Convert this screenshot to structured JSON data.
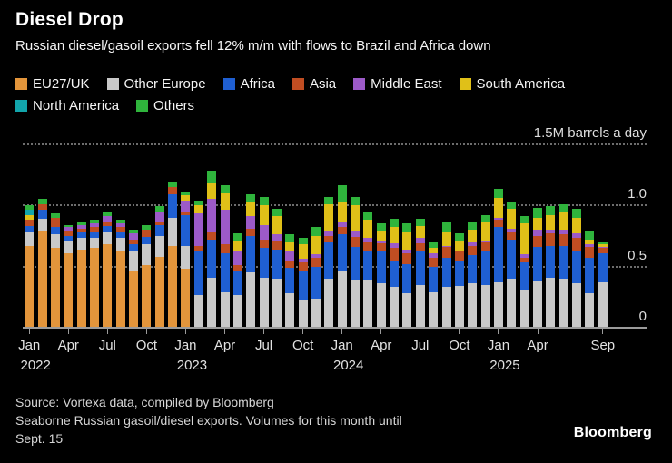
{
  "header": {
    "title": "Diesel Drop",
    "subtitle": "Russian diesel/gasoil exports fell 12% m/m with flows to Brazil and Africa down"
  },
  "legend": {
    "rows": [
      [
        {
          "label": "EU27/UK",
          "color": "#E3953B"
        },
        {
          "label": "Other Europe",
          "color": "#C9C9C9"
        },
        {
          "label": "Africa",
          "color": "#1F5FD2"
        },
        {
          "label": "Asia",
          "color": "#C04D22"
        },
        {
          "label": "Middle East",
          "color": "#9C5AC8"
        },
        {
          "label": "South America",
          "color": "#E0C018"
        }
      ],
      [
        {
          "label": "North America",
          "color": "#12A5AB"
        },
        {
          "label": "Others",
          "color": "#2FB43C"
        }
      ]
    ]
  },
  "chart_data": {
    "type": "bar",
    "stacked": true,
    "title": "Diesel Drop",
    "ylabel": "1.5M barrels a day",
    "ylim": [
      0,
      1.5
    ],
    "grid": "horizontal-dotted",
    "legend_position": "top",
    "series_names": [
      "EU27/UK",
      "Other Europe",
      "Africa",
      "Asia",
      "Middle East",
      "South America",
      "North America",
      "Others"
    ],
    "series_colors": [
      "#E3953B",
      "#C9C9C9",
      "#1F5FD2",
      "#C04D22",
      "#9C5AC8",
      "#E0C018",
      "#12A5AB",
      "#2FB43C"
    ],
    "y_gridlines": [
      1.5,
      1.0,
      0.5
    ],
    "y_axis_labels": [
      {
        "value": 1.5,
        "label": "1.5M barrels a day"
      },
      {
        "value": 1.0,
        "label": "1.0"
      },
      {
        "value": 0.5,
        "label": "0.5"
      },
      {
        "value": 0,
        "label": "0"
      }
    ],
    "x_ticks": [
      {
        "index": 0,
        "label": "Jan",
        "year_label": "2022"
      },
      {
        "index": 3,
        "label": "Apr"
      },
      {
        "index": 6,
        "label": "Jul"
      },
      {
        "index": 9,
        "label": "Oct"
      },
      {
        "index": 12,
        "label": "Jan",
        "year_label": "2023"
      },
      {
        "index": 15,
        "label": "Apr"
      },
      {
        "index": 18,
        "label": "Jul"
      },
      {
        "index": 21,
        "label": "Oct"
      },
      {
        "index": 24,
        "label": "Jan",
        "year_label": "2024"
      },
      {
        "index": 27,
        "label": "Apr"
      },
      {
        "index": 30,
        "label": "Jul"
      },
      {
        "index": 33,
        "label": "Oct"
      },
      {
        "index": 36,
        "label": "Jan",
        "year_label": "2025"
      },
      {
        "index": 39,
        "label": "Apr"
      },
      {
        "index": 44,
        "label": "Sep"
      }
    ],
    "months": [
      {
        "month": "Jan",
        "year": 2022,
        "values": [
          0.67,
          0.11,
          0.05,
          0.05,
          0,
          0.04,
          0.04,
          0.04
        ]
      },
      {
        "month": "Feb",
        "year": 2022,
        "values": [
          0.79,
          0.1,
          0.07,
          0.05,
          0,
          0,
          0,
          0.04
        ]
      },
      {
        "month": "Mar",
        "year": 2022,
        "values": [
          0.65,
          0.11,
          0.06,
          0.08,
          0,
          0,
          0,
          0.03
        ]
      },
      {
        "month": "Apr",
        "year": 2022,
        "values": [
          0.61,
          0.1,
          0.04,
          0.04,
          0.03,
          0,
          0,
          0.02
        ]
      },
      {
        "month": "May",
        "year": 2022,
        "values": [
          0.64,
          0.09,
          0.05,
          0.03,
          0.03,
          0,
          0,
          0.03
        ]
      },
      {
        "month": "Jun",
        "year": 2022,
        "values": [
          0.65,
          0.08,
          0.05,
          0.04,
          0.03,
          0,
          0,
          0.03
        ]
      },
      {
        "month": "Jul",
        "year": 2022,
        "values": [
          0.68,
          0.1,
          0.05,
          0.04,
          0.04,
          0,
          0,
          0.03
        ]
      },
      {
        "month": "Aug",
        "year": 2022,
        "values": [
          0.63,
          0.1,
          0.05,
          0.04,
          0.03,
          0,
          0,
          0.03
        ]
      },
      {
        "month": "Sep",
        "year": 2022,
        "values": [
          0.47,
          0.15,
          0.06,
          0.04,
          0.05,
          0,
          0,
          0.03
        ]
      },
      {
        "month": "Oct",
        "year": 2022,
        "values": [
          0.51,
          0.17,
          0.06,
          0.06,
          0,
          0,
          0,
          0.04
        ]
      },
      {
        "month": "Nov",
        "year": 2022,
        "values": [
          0.58,
          0.17,
          0.09,
          0.03,
          0.08,
          0,
          0,
          0.04
        ]
      },
      {
        "month": "Dec",
        "year": 2022,
        "values": [
          0.67,
          0.23,
          0.19,
          0.06,
          0,
          0,
          0,
          0.04
        ]
      },
      {
        "month": "Jan",
        "year": 2023,
        "values": [
          0.48,
          0.19,
          0.25,
          0.02,
          0.1,
          0.04,
          0,
          0.03
        ]
      },
      {
        "month": "Feb",
        "year": 2023,
        "values": [
          0.01,
          0.26,
          0.35,
          0.05,
          0.26,
          0.07,
          0,
          0.04
        ]
      },
      {
        "month": "Mar",
        "year": 2023,
        "values": [
          0.01,
          0.4,
          0.31,
          0.06,
          0.27,
          0.13,
          0,
          0.1
        ]
      },
      {
        "month": "Apr",
        "year": 2023,
        "values": [
          0.01,
          0.28,
          0.32,
          0.07,
          0.28,
          0.14,
          0,
          0.06
        ]
      },
      {
        "month": "May",
        "year": 2023,
        "values": [
          0.01,
          0.26,
          0.2,
          0.04,
          0.12,
          0.08,
          0,
          0.06
        ]
      },
      {
        "month": "Jun",
        "year": 2023,
        "values": [
          0.01,
          0.44,
          0.3,
          0.06,
          0.1,
          0.11,
          0,
          0.07
        ]
      },
      {
        "month": "Jul",
        "year": 2023,
        "values": [
          0.01,
          0.4,
          0.24,
          0.07,
          0.12,
          0.16,
          0,
          0.07
        ]
      },
      {
        "month": "Aug",
        "year": 2023,
        "values": [
          0.01,
          0.39,
          0.24,
          0.07,
          0.05,
          0.15,
          0,
          0.06
        ]
      },
      {
        "month": "Sep",
        "year": 2023,
        "values": [
          0.01,
          0.27,
          0.21,
          0.06,
          0.08,
          0.07,
          0,
          0.06
        ]
      },
      {
        "month": "Oct",
        "year": 2023,
        "values": [
          0.01,
          0.21,
          0.24,
          0.07,
          0.03,
          0.12,
          0,
          0.05
        ]
      },
      {
        "month": "Nov",
        "year": 2023,
        "values": [
          0.01,
          0.23,
          0.26,
          0.07,
          0.03,
          0.15,
          0,
          0.07
        ]
      },
      {
        "month": "Dec",
        "year": 2023,
        "values": [
          0.01,
          0.39,
          0.3,
          0.05,
          0.04,
          0.22,
          0,
          0.06
        ]
      },
      {
        "month": "Jan",
        "year": 2024,
        "values": [
          0.01,
          0.45,
          0.3,
          0.06,
          0.04,
          0.17,
          0,
          0.13
        ]
      },
      {
        "month": "Feb",
        "year": 2024,
        "values": [
          0.01,
          0.38,
          0.27,
          0.08,
          0.05,
          0.21,
          0,
          0.07
        ]
      },
      {
        "month": "Mar",
        "year": 2024,
        "values": [
          0.01,
          0.38,
          0.24,
          0.07,
          0.03,
          0.15,
          0,
          0.07
        ]
      },
      {
        "month": "Apr",
        "year": 2024,
        "values": [
          0.01,
          0.35,
          0.26,
          0.07,
          0.02,
          0.08,
          0,
          0.06
        ]
      },
      {
        "month": "May",
        "year": 2024,
        "values": [
          0.01,
          0.32,
          0.22,
          0.1,
          0.04,
          0.13,
          0,
          0.07
        ]
      },
      {
        "month": "Jun",
        "year": 2024,
        "values": [
          0.01,
          0.27,
          0.24,
          0.09,
          0.03,
          0.14,
          0,
          0.07
        ]
      },
      {
        "month": "Jul",
        "year": 2024,
        "values": [
          0.01,
          0.34,
          0.27,
          0.07,
          0.04,
          0.1,
          0,
          0.06
        ]
      },
      {
        "month": "Aug",
        "year": 2024,
        "values": [
          0.01,
          0.28,
          0.21,
          0.07,
          0.04,
          0.04,
          0,
          0.05
        ]
      },
      {
        "month": "Sep",
        "year": 2024,
        "values": [
          0.01,
          0.32,
          0.24,
          0.09,
          0.01,
          0.11,
          0,
          0.08
        ]
      },
      {
        "month": "Oct",
        "year": 2024,
        "values": [
          0.01,
          0.33,
          0.21,
          0.07,
          0.01,
          0.08,
          0,
          0.06
        ]
      },
      {
        "month": "Nov",
        "year": 2024,
        "values": [
          0.01,
          0.35,
          0.23,
          0.08,
          0.03,
          0.1,
          0,
          0.07
        ]
      },
      {
        "month": "Dec",
        "year": 2024,
        "values": [
          0.01,
          0.34,
          0.28,
          0.07,
          0.01,
          0.15,
          0,
          0.06
        ]
      },
      {
        "month": "Jan",
        "year": 2025,
        "values": [
          0.01,
          0.36,
          0.45,
          0.06,
          0.02,
          0.16,
          0,
          0.07
        ]
      },
      {
        "month": "Feb",
        "year": 2025,
        "values": [
          0.01,
          0.39,
          0.32,
          0.06,
          0.03,
          0.16,
          0,
          0.06
        ]
      },
      {
        "month": "Mar",
        "year": 2025,
        "values": [
          0.01,
          0.3,
          0.22,
          0.04,
          0.03,
          0.25,
          0,
          0.06
        ]
      },
      {
        "month": "Apr",
        "year": 2025,
        "values": [
          0.01,
          0.37,
          0.28,
          0.09,
          0.05,
          0.1,
          0,
          0.08
        ]
      },
      {
        "month": "May",
        "year": 2025,
        "values": [
          0.01,
          0.4,
          0.26,
          0.1,
          0.03,
          0.12,
          0,
          0.07
        ]
      },
      {
        "month": "Jun",
        "year": 2025,
        "values": [
          0.01,
          0.39,
          0.27,
          0.09,
          0.04,
          0.15,
          0,
          0.06
        ]
      },
      {
        "month": "Jul",
        "year": 2025,
        "values": [
          0.01,
          0.35,
          0.27,
          0.1,
          0.04,
          0.13,
          0,
          0.07
        ]
      },
      {
        "month": "Aug",
        "year": 2025,
        "values": [
          0.01,
          0.27,
          0.29,
          0.09,
          0.02,
          0.04,
          0,
          0.07
        ]
      },
      {
        "month": "Sep",
        "year": 2025,
        "values": [
          0.01,
          0.36,
          0.24,
          0.04,
          0.01,
          0.02,
          0,
          0.02
        ]
      }
    ]
  },
  "footer": {
    "source_line": "Source: Vortexa data, compiled by Bloomberg",
    "note_line1": "Seaborne Russian gasoil/diesel exports. Volumes for this month until",
    "note_line2": "Sept. 15",
    "brand": "Bloomberg"
  }
}
